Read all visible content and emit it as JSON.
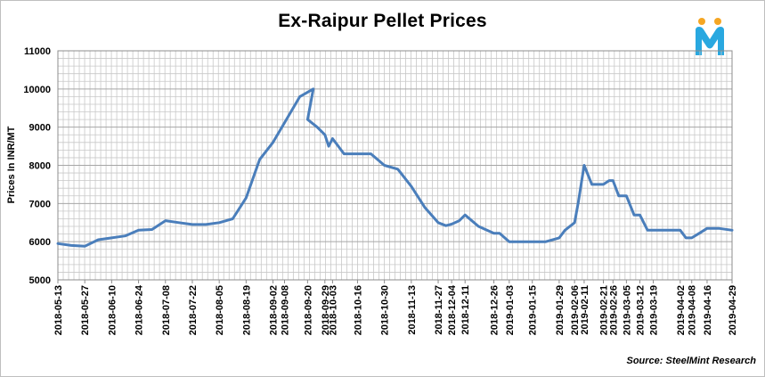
{
  "logo": {
    "icon": "steelmint-m-logo",
    "colors": {
      "dots": "#f5a623",
      "letter": "#29a8e0"
    }
  },
  "source": "Source: SteelMint Research",
  "chart_data": {
    "type": "line",
    "title": "Ex-Raipur Pellet Prices",
    "ylabel": "Prices In INR/MT",
    "xlabel": "",
    "ylim": [
      5000,
      11000
    ],
    "yticks": [
      5000,
      6000,
      7000,
      8000,
      9000,
      10000,
      11000
    ],
    "grid": true,
    "line_color": "#4a7ebb",
    "x": [
      "2018-05-13",
      "2018-05-20",
      "2018-05-27",
      "2018-06-03",
      "2018-06-10",
      "2018-06-17",
      "2018-06-24",
      "2018-07-01",
      "2018-07-08",
      "2018-07-15",
      "2018-07-22",
      "2018-07-29",
      "2018-08-05",
      "2018-08-12",
      "2018-08-19",
      "2018-08-26",
      "2018-09-02",
      "2018-09-09",
      "2018-09-16",
      "2018-09-23",
      "2018-09-20",
      "2018-09-25",
      "2018-09-29",
      "2018-10-01",
      "2018-10-03",
      "2018-10-09",
      "2018-10-16",
      "2018-10-23",
      "2018-10-30",
      "2018-11-06",
      "2018-11-13",
      "2018-11-20",
      "2018-11-27",
      "2018-12-01",
      "2018-12-04",
      "2018-12-08",
      "2018-12-11",
      "2018-12-18",
      "2018-12-26",
      "2018-12-29",
      "2019-01-03",
      "2019-01-08",
      "2019-01-15",
      "2019-01-22",
      "2019-01-29",
      "2019-02-01",
      "2019-02-06",
      "2019-02-08",
      "2019-02-11",
      "2019-02-15",
      "2019-02-21",
      "2019-02-24",
      "2019-02-26",
      "2019-03-01",
      "2019-03-05",
      "2019-03-09",
      "2019-03-12",
      "2019-03-16",
      "2019-03-19",
      "2019-03-24",
      "2019-04-02",
      "2019-04-05",
      "2019-04-08",
      "2019-04-12",
      "2019-04-16",
      "2019-04-22",
      "2019-04-29"
    ],
    "tick_labels": [
      "2018-05-13",
      "2018-05-27",
      "2018-06-10",
      "2018-06-24",
      "2018-07-08",
      "2018-07-22",
      "2018-08-05",
      "2018-08-19",
      "2018-09-02",
      "2018-09-08",
      "2018-09-20",
      "2018-09-29",
      "2018-10-03",
      "2018-10-16",
      "2018-10-30",
      "2018-11-13",
      "2018-11-27",
      "2018-12-04",
      "2018-12-11",
      "2018-12-26",
      "2019-01-03",
      "2019-01-15",
      "2019-01-29",
      "2019-02-06",
      "2019-02-11",
      "2019-02-21",
      "2019-02-26",
      "2019-03-05",
      "2019-03-12",
      "2019-03-19",
      "2019-04-02",
      "2019-04-08",
      "2019-04-16",
      "2019-04-29"
    ],
    "series": [
      {
        "values": [
          5950,
          5900,
          5880,
          6050,
          6100,
          6150,
          6300,
          6320,
          6550,
          6500,
          6450,
          6450,
          6500,
          6600,
          7150,
          8150,
          8600,
          9200,
          9800,
          10000,
          9200,
          9000,
          8800,
          8500,
          8700,
          8300,
          8300,
          8300,
          8000,
          7900,
          7450,
          6900,
          6500,
          6420,
          6460,
          6550,
          6700,
          6400,
          6220,
          6220,
          6000,
          6000,
          6000,
          6000,
          6100,
          6300,
          6500,
          7050,
          8000,
          7500,
          7500,
          7600,
          7600,
          7200,
          7200,
          6700,
          6700,
          6300,
          6300,
          6300,
          6300,
          6100,
          6100,
          6220,
          6350,
          6350,
          6300
        ]
      }
    ]
  }
}
